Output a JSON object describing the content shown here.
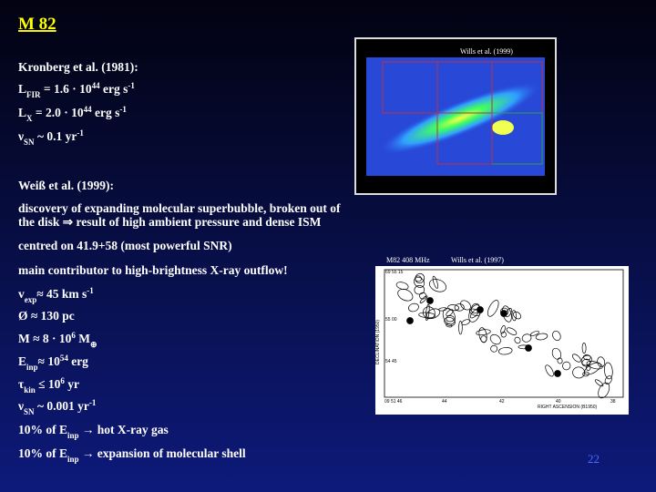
{
  "title": "M 82",
  "image1": {
    "caption": "Wills et al. (1999)"
  },
  "image2": {
    "caption_left": "M82 408 MHz",
    "caption_right": "Wills et al. (1997)",
    "y_axis_label": "DECLINATION (1950)",
    "x_axis_label": "RIGHT ASCENSION (B1950)",
    "y_ticks": [
      "69 55 15",
      "55 00",
      "54 45"
    ],
    "x_ticks": [
      "09 51 46",
      "44",
      "42",
      "40",
      "38"
    ]
  },
  "lines": [
    [
      {
        "t": "Kronberg et al. (1981):"
      }
    ],
    [
      {
        "t": "L"
      },
      {
        "t": "FIR",
        "s": "sub"
      },
      {
        "t": " = 1.6 · 10"
      },
      {
        "t": "44",
        "s": "sup"
      },
      {
        "t": "  erg s"
      },
      {
        "t": "-1",
        "s": "sup"
      }
    ],
    [
      {
        "t": "L"
      },
      {
        "t": "X",
        "s": "sub"
      },
      {
        "t": "   = 2.0 · 10"
      },
      {
        "t": "44",
        "s": "sup"
      },
      {
        "t": "  erg s"
      },
      {
        "t": "-1",
        "s": "sup"
      }
    ],
    [
      {
        "t": "ν"
      },
      {
        "t": "SN",
        "s": "sub"
      },
      {
        "t": " ~ 0.1 yr"
      },
      {
        "t": "-1",
        "s": "sup"
      }
    ],
    [
      {
        "t": "Weiß et al. (1999):"
      }
    ],
    [
      {
        "t": "discovery of expanding molecular superbubble, broken out of"
      }
    ],
    [
      {
        "t": "the disk ⇒ result of high ambient pressure and dense ISM"
      }
    ],
    [
      {
        "t": "centred on 41.9+58 (most powerful SNR)"
      }
    ],
    [
      {
        "t": "main contributor to high-brightness X-ray outflow!"
      }
    ],
    [
      {
        "t": "v"
      },
      {
        "t": "exp",
        "s": "sub"
      },
      {
        "t": "≈  45 km s"
      },
      {
        "t": "-1",
        "s": "sup"
      }
    ],
    [
      {
        "t": "Ø   ≈  130 pc"
      }
    ],
    [
      {
        "t": "M   ≈  8 · 10"
      },
      {
        "t": "6",
        "s": "sup"
      },
      {
        "t": " M"
      },
      {
        "t": "⊕",
        "s": "sub"
      }
    ],
    [
      {
        "t": "E"
      },
      {
        "t": "inp",
        "s": "sub"
      },
      {
        "t": "≈  10"
      },
      {
        "t": "54",
        "s": "sup"
      },
      {
        "t": "  erg"
      }
    ],
    [
      {
        "t": "τ"
      },
      {
        "t": "kin",
        "s": "sub"
      },
      {
        "t": "  ≤  10"
      },
      {
        "t": "6",
        "s": "sup"
      },
      {
        "t": "  yr"
      }
    ],
    [
      {
        "t": "ν"
      },
      {
        "t": "SN",
        "s": "sub"
      },
      {
        "t": " ~ 0.001 yr"
      },
      {
        "t": "-1",
        "s": "sup"
      }
    ],
    [
      {
        "t": "10%  of  E"
      },
      {
        "t": "inp",
        "s": "sub"
      },
      {
        "t": " →  hot X-ray gas"
      }
    ],
    [
      {
        "t": "10%  of  E"
      },
      {
        "t": "inp",
        "s": "sub"
      },
      {
        "t": " →  expansion of molecular shell"
      }
    ]
  ],
  "page_number": "22"
}
